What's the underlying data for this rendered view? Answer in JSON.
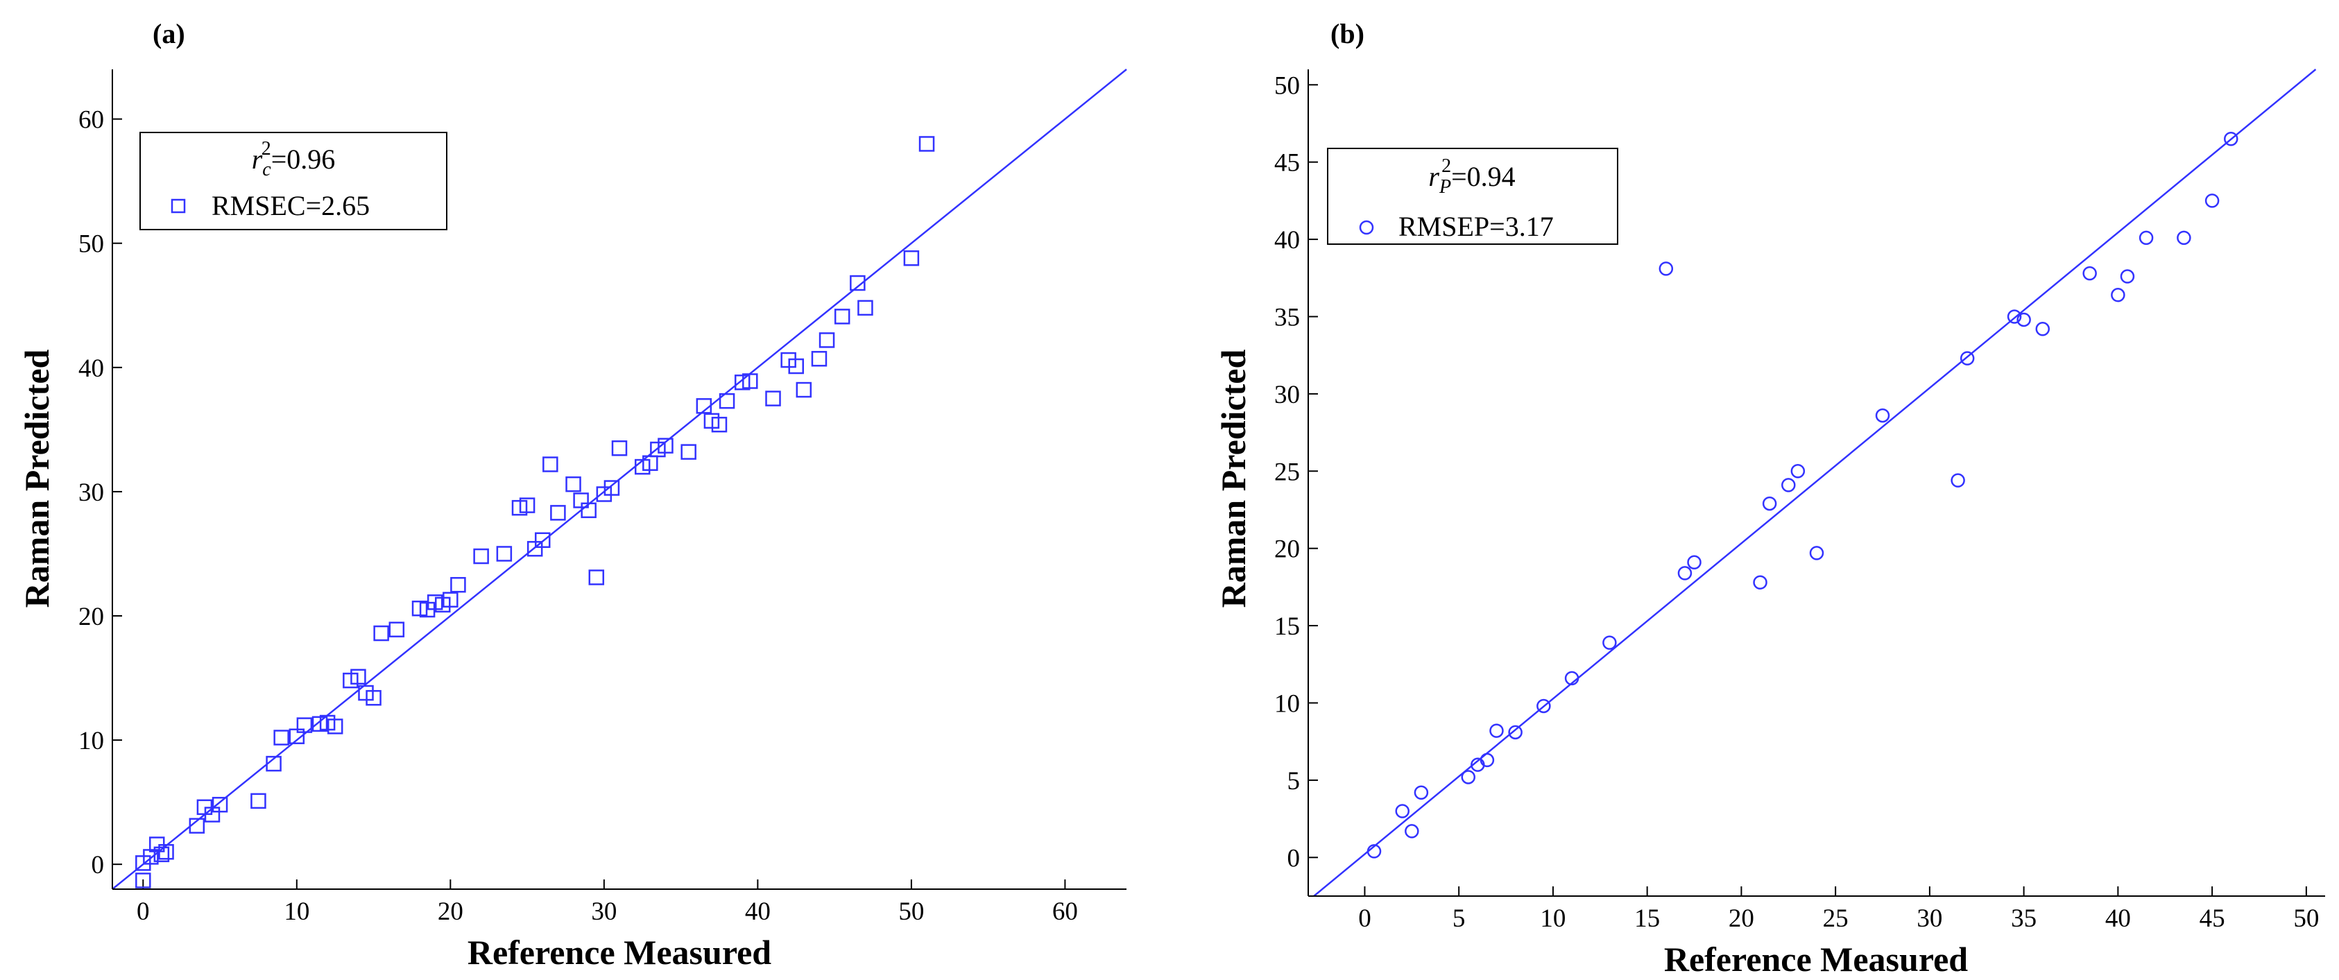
{
  "chart_data": [
    {
      "type": "scatter",
      "panel_label": "(a)",
      "xlabel": "Reference Measured",
      "ylabel": "Raman Predicted",
      "xlim": [
        -2,
        64
      ],
      "ylim": [
        -2,
        64
      ],
      "xticks": [
        0,
        10,
        20,
        30,
        40,
        50,
        60
      ],
      "yticks": [
        0,
        10,
        20,
        30,
        40,
        50,
        60
      ],
      "marker": "square",
      "color": "#3333ff",
      "legend": {
        "r2_symbol": "r",
        "r2_sub": "c",
        "r2_sup": "2",
        "r2_value": "=0.96",
        "error_label": "RMSEC=2.65"
      },
      "fit_line": [
        [
          -2,
          -2
        ],
        [
          64,
          64
        ]
      ],
      "points": [
        [
          0,
          -1.3
        ],
        [
          0,
          0.1
        ],
        [
          0.5,
          0.6
        ],
        [
          0.9,
          1.6
        ],
        [
          1.2,
          0.8
        ],
        [
          1.5,
          1.0
        ],
        [
          3.5,
          3.1
        ],
        [
          4,
          4.6
        ],
        [
          4.5,
          4.0
        ],
        [
          5,
          4.8
        ],
        [
          7.5,
          5.1
        ],
        [
          8.5,
          8.1
        ],
        [
          9,
          10.2
        ],
        [
          10,
          10.3
        ],
        [
          10.5,
          11.2
        ],
        [
          11.5,
          11.3
        ],
        [
          12,
          11.4
        ],
        [
          12.5,
          11.1
        ],
        [
          13.5,
          14.8
        ],
        [
          14,
          15.1
        ],
        [
          14.5,
          13.8
        ],
        [
          15,
          13.4
        ],
        [
          15.5,
          18.6
        ],
        [
          16.5,
          18.9
        ],
        [
          18,
          20.6
        ],
        [
          18.5,
          20.5
        ],
        [
          19,
          21.1
        ],
        [
          19.5,
          20.9
        ],
        [
          20,
          21.3
        ],
        [
          20.5,
          22.5
        ],
        [
          22,
          24.8
        ],
        [
          23.5,
          25.0
        ],
        [
          24.5,
          28.7
        ],
        [
          25,
          28.9
        ],
        [
          25.5,
          25.4
        ],
        [
          26,
          26.1
        ],
        [
          26.5,
          32.2
        ],
        [
          27,
          28.3
        ],
        [
          28,
          30.6
        ],
        [
          28.5,
          29.3
        ],
        [
          29,
          28.5
        ],
        [
          29.5,
          23.1
        ],
        [
          30,
          29.8
        ],
        [
          30.5,
          30.3
        ],
        [
          31,
          33.5
        ],
        [
          32.5,
          32.0
        ],
        [
          33,
          32.3
        ],
        [
          33.5,
          33.4
        ],
        [
          34,
          33.7
        ],
        [
          35.5,
          33.2
        ],
        [
          36.5,
          36.9
        ],
        [
          37,
          35.7
        ],
        [
          37.5,
          35.4
        ],
        [
          38,
          37.3
        ],
        [
          39,
          38.8
        ],
        [
          39.5,
          38.9
        ],
        [
          41,
          37.5
        ],
        [
          42,
          40.6
        ],
        [
          42.5,
          40.1
        ],
        [
          43,
          38.2
        ],
        [
          44,
          40.7
        ],
        [
          44.5,
          42.2
        ],
        [
          45.5,
          44.1
        ],
        [
          46.5,
          46.8
        ],
        [
          47,
          44.8
        ],
        [
          50,
          48.8
        ],
        [
          51,
          58.0
        ]
      ]
    },
    {
      "type": "scatter",
      "panel_label": "(b)",
      "xlabel": "Reference Measured",
      "ylabel": "Raman Predicted",
      "xlim": [
        -3,
        51
      ],
      "ylim": [
        -2.5,
        51
      ],
      "xticks": [
        0,
        5,
        10,
        15,
        20,
        25,
        30,
        35,
        40,
        45,
        50
      ],
      "yticks": [
        0,
        5,
        10,
        15,
        20,
        25,
        30,
        35,
        40,
        45,
        50
      ],
      "marker": "circle",
      "color": "#3333ff",
      "legend": {
        "r2_symbol": "r",
        "r2_sub": "P",
        "r2_sup": "2",
        "r2_value": "=0.94",
        "error_label": "RMSEP=3.17"
      },
      "fit_line": [
        [
          -2.7,
          -2.5
        ],
        [
          50.5,
          51.0
        ]
      ],
      "points": [
        [
          0.5,
          0.4
        ],
        [
          2,
          3.0
        ],
        [
          2.5,
          1.7
        ],
        [
          3,
          4.2
        ],
        [
          5.5,
          5.2
        ],
        [
          6,
          6.0
        ],
        [
          6.5,
          6.3
        ],
        [
          7,
          8.2
        ],
        [
          8,
          8.1
        ],
        [
          9.5,
          9.8
        ],
        [
          11,
          11.6
        ],
        [
          13,
          13.9
        ],
        [
          16,
          38.1
        ],
        [
          17,
          18.4
        ],
        [
          17.5,
          19.1
        ],
        [
          21,
          17.8
        ],
        [
          21.5,
          22.9
        ],
        [
          22.5,
          24.1
        ],
        [
          23,
          25.0
        ],
        [
          24,
          19.7
        ],
        [
          27.5,
          28.6
        ],
        [
          31.5,
          24.4
        ],
        [
          32,
          32.3
        ],
        [
          34.5,
          35.0
        ],
        [
          35,
          34.8
        ],
        [
          36,
          34.2
        ],
        [
          38.5,
          37.8
        ],
        [
          40,
          36.4
        ],
        [
          40.5,
          37.6
        ],
        [
          41.5,
          40.1
        ],
        [
          43.5,
          40.1
        ],
        [
          45,
          42.5
        ],
        [
          46,
          46.5
        ]
      ]
    }
  ]
}
